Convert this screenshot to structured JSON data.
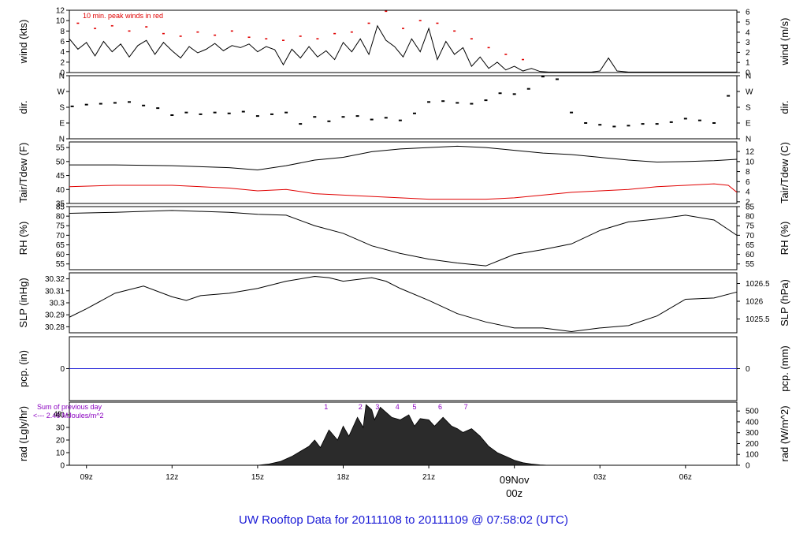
{
  "title": "UW Rooftop Data for 20111108  to  20111109 @ 07:58:02  (UTC)",
  "colors": {
    "primary": "#000000",
    "peak": "#e00000",
    "dew": "#e00000",
    "precip": "#1a1ad6",
    "rad_note": "#8a00c0",
    "title": "#1a1ad6",
    "date": "#e00000"
  },
  "x_axis": {
    "unit": "hour UTC (0 = 09Nov 00z)",
    "range": [
      -15.6,
      7.8
    ],
    "ticks": [
      {
        "h": -15,
        "label": "09z"
      },
      {
        "h": -12,
        "label": "12z"
      },
      {
        "h": -9,
        "label": "15z"
      },
      {
        "h": -6,
        "label": "18z"
      },
      {
        "h": -3,
        "label": "21z"
      },
      {
        "h": 3,
        "label": "03z"
      },
      {
        "h": 6,
        "label": "06z"
      }
    ],
    "date_label": "09Nov",
    "date_sub": "00z",
    "date_h": 0
  },
  "chart_data": [
    {
      "id": "wind",
      "type": "line",
      "ylabel": "wind (kts)",
      "ylabel_right": "wind (m/s)",
      "ylim": [
        0,
        12
      ],
      "yticks": [
        0,
        2,
        4,
        6,
        8,
        10,
        12
      ],
      "right_ticks": [
        {
          "v": 0,
          "label": "0"
        },
        {
          "v": 1.944,
          "label": "1"
        },
        {
          "v": 3.888,
          "label": "2"
        },
        {
          "v": 5.832,
          "label": "3"
        },
        {
          "v": 7.776,
          "label": "4"
        },
        {
          "v": 9.72,
          "label": "5"
        },
        {
          "v": 11.664,
          "label": "6"
        }
      ],
      "annotation": "10 min. peak winds in red",
      "series": [
        {
          "x": [
            -15.6,
            -15.3,
            -15.0,
            -14.7,
            -14.4,
            -14.1,
            -13.8,
            -13.5,
            -13.2,
            -12.9,
            -12.6,
            -12.3,
            -12.0,
            -11.7,
            -11.4,
            -11.1,
            -10.8,
            -10.5,
            -10.2,
            -9.9,
            -9.6,
            -9.3,
            -9.0,
            -8.7,
            -8.4,
            -8.1,
            -7.8,
            -7.5,
            -7.2,
            -6.9,
            -6.6,
            -6.3,
            -6.0,
            -5.7,
            -5.4,
            -5.1,
            -4.8,
            -4.5,
            -4.2,
            -3.9,
            -3.6,
            -3.3,
            -3.0,
            -2.7,
            -2.4,
            -2.1,
            -1.8,
            -1.5,
            -1.2,
            -0.9,
            -0.6,
            -0.3,
            0.0,
            0.3,
            0.6,
            0.9,
            1.2,
            1.5,
            1.8,
            2.1,
            2.4,
            2.7,
            3.0,
            3.3,
            3.6,
            4.0,
            5.0,
            6.0,
            7.0,
            7.8
          ],
          "y": [
            6.5,
            4.5,
            5.8,
            3.2,
            6.0,
            4.0,
            5.5,
            3.0,
            5.2,
            6.2,
            3.5,
            5.8,
            4.2,
            2.8,
            5.0,
            3.8,
            4.5,
            5.6,
            4.2,
            5.2,
            4.8,
            5.5,
            4.0,
            5.0,
            4.4,
            1.5,
            4.5,
            2.8,
            5.0,
            3.0,
            4.2,
            2.5,
            5.8,
            4.0,
            6.5,
            3.5,
            9.0,
            6.2,
            5.0,
            3.0,
            6.5,
            4.0,
            8.5,
            2.5,
            6.0,
            3.5,
            4.8,
            1.2,
            3.0,
            0.8,
            2.0,
            0.5,
            1.2,
            0.3,
            0.8,
            0.2,
            0.1,
            0.1,
            0.1,
            0.1,
            0.1,
            0.1,
            0.3,
            2.8,
            0.3,
            0.1,
            0.1,
            0.1,
            0.1,
            0.1
          ]
        },
        {
          "x": [
            -15.3,
            -14.7,
            -14.1,
            -13.5,
            -12.9,
            -12.3,
            -11.7,
            -11.1,
            -10.5,
            -9.9,
            -9.3,
            -8.7,
            -8.1,
            -7.5,
            -6.9,
            -6.3,
            -5.7,
            -5.1,
            -4.5,
            -3.9,
            -3.3,
            -2.7,
            -2.1,
            -1.5,
            -0.9,
            -0.3,
            0.3
          ],
          "y": [
            9.5,
            8.5,
            9.0,
            8.0,
            8.8,
            7.5,
            7.0,
            7.8,
            7.2,
            8.0,
            6.8,
            6.5,
            6.2,
            7.0,
            6.5,
            7.5,
            7.8,
            9.5,
            11.8,
            8.5,
            10.0,
            9.5,
            8.0,
            6.5,
            4.8,
            3.5,
            2.5
          ]
        }
      ]
    },
    {
      "id": "dir",
      "type": "scatter",
      "ylabel": "dir.",
      "ylabel_right": "dir.",
      "ylim": [
        0,
        360
      ],
      "yticks": [
        {
          "v": 0,
          "label": "N"
        },
        {
          "v": 90,
          "label": "E"
        },
        {
          "v": 180,
          "label": "S"
        },
        {
          "v": 270,
          "label": "W"
        },
        {
          "v": 360,
          "label": "N"
        }
      ],
      "series": [
        {
          "x": [
            -15.5,
            -15.0,
            -14.5,
            -14.0,
            -13.5,
            -13.0,
            -12.5,
            -12.0,
            -11.5,
            -11.0,
            -10.5,
            -10.0,
            -9.5,
            -9.0,
            -8.5,
            -8.0,
            -7.5,
            -7.0,
            -6.5,
            -6.0,
            -5.5,
            -5.0,
            -4.5,
            -4.0,
            -3.5,
            -3.0,
            -2.5,
            -2.0,
            -1.5,
            -1.0,
            -0.5,
            0.0,
            0.5,
            1.0,
            1.5,
            2.0,
            2.5,
            3.0,
            3.5,
            4.0,
            4.5,
            5.0,
            5.5,
            6.0,
            6.5,
            7.0,
            7.5
          ],
          "y": [
            185,
            195,
            200,
            205,
            210,
            190,
            175,
            135,
            150,
            140,
            150,
            145,
            155,
            130,
            140,
            150,
            85,
            125,
            100,
            125,
            130,
            110,
            120,
            105,
            145,
            210,
            215,
            205,
            200,
            220,
            260,
            255,
            285,
            355,
            340,
            150,
            90,
            80,
            70,
            75,
            85,
            85,
            95,
            115,
            105,
            90,
            245
          ]
        }
      ]
    },
    {
      "id": "temp",
      "type": "line",
      "ylabel": "Tair/Tdew (F)",
      "ylabel_right": "Tair/Tdew (C)",
      "ylim": [
        35,
        57
      ],
      "yticks": [
        35,
        40,
        45,
        50,
        55
      ],
      "right_ticks": [
        {
          "v": 35.6,
          "label": "2"
        },
        {
          "v": 39.2,
          "label": "4"
        },
        {
          "v": 42.8,
          "label": "6"
        },
        {
          "v": 46.4,
          "label": "8"
        },
        {
          "v": 50,
          "label": "10"
        },
        {
          "v": 53.6,
          "label": "12"
        }
      ],
      "series": [
        {
          "x": [
            -15.6,
            -14.0,
            -12.0,
            -10.0,
            -9.0,
            -8.0,
            -7.0,
            -6.0,
            -5.0,
            -4.0,
            -3.0,
            -2.0,
            -1.0,
            0.0,
            1.0,
            2.0,
            3.0,
            4.0,
            5.0,
            6.0,
            7.0,
            7.8
          ],
          "y": [
            48.8,
            48.8,
            48.5,
            47.8,
            47.0,
            48.5,
            50.5,
            51.5,
            53.5,
            54.5,
            55.0,
            55.5,
            55.0,
            54.0,
            53.0,
            52.5,
            51.5,
            50.5,
            49.8,
            50.0,
            50.3,
            50.8
          ]
        },
        {
          "x": [
            -15.6,
            -14.0,
            -12.0,
            -10.0,
            -9.0,
            -8.0,
            -7.0,
            -6.0,
            -5.0,
            -4.0,
            -3.0,
            -2.0,
            -1.0,
            0.0,
            1.0,
            2.0,
            3.0,
            4.0,
            5.0,
            6.0,
            7.0,
            7.5,
            7.8
          ],
          "y": [
            41.0,
            41.5,
            41.5,
            40.5,
            39.5,
            40.0,
            38.5,
            38.0,
            37.5,
            37.0,
            36.5,
            36.5,
            36.5,
            37.0,
            38.0,
            39.0,
            39.5,
            40.0,
            41.0,
            41.5,
            42.0,
            41.5,
            39.0
          ]
        }
      ]
    },
    {
      "id": "rh",
      "type": "line",
      "ylabel": "RH (%)",
      "ylabel_right": "RH (%)",
      "ylim": [
        52,
        85
      ],
      "yticks": [
        55,
        60,
        65,
        70,
        75,
        80,
        85
      ],
      "right_ticks": [
        {
          "v": 55,
          "label": "55"
        },
        {
          "v": 60,
          "label": "60"
        },
        {
          "v": 65,
          "label": "65"
        },
        {
          "v": 70,
          "label": "70"
        },
        {
          "v": 75,
          "label": "75"
        },
        {
          "v": 80,
          "label": "80"
        },
        {
          "v": 85,
          "label": "85"
        }
      ],
      "series": [
        {
          "x": [
            -15.6,
            -14.0,
            -12.0,
            -10.0,
            -9.0,
            -8.0,
            -7.0,
            -6.0,
            -5.0,
            -4.0,
            -3.0,
            -2.0,
            -1.0,
            0.0,
            1.0,
            2.0,
            3.0,
            4.0,
            5.0,
            6.0,
            7.0,
            7.8
          ],
          "y": [
            81.5,
            82.0,
            83.0,
            82.0,
            81.0,
            80.5,
            75.0,
            71.0,
            64.5,
            60.5,
            57.5,
            55.5,
            54.0,
            60.0,
            62.5,
            65.5,
            72.5,
            77.0,
            78.5,
            80.5,
            78.0,
            70.0
          ]
        }
      ]
    },
    {
      "id": "slp",
      "type": "line",
      "ylabel": "SLP (inHg)",
      "ylabel_right": "SLP (hPa)",
      "ylim": [
        30.275,
        30.325
      ],
      "yticks": [
        30.28,
        30.29,
        30.3,
        30.31,
        30.32
      ],
      "right_ticks": [
        {
          "v": 30.2865,
          "label": "1025.5"
        },
        {
          "v": 30.3013,
          "label": "1026"
        },
        {
          "v": 30.3161,
          "label": "1026.5"
        }
      ],
      "series": [
        {
          "x": [
            -15.6,
            -15.0,
            -14.0,
            -13.0,
            -12.0,
            -11.5,
            -11.0,
            -10.0,
            -9.0,
            -8.0,
            -7.0,
            -6.5,
            -6.0,
            -5.0,
            -4.5,
            -4.0,
            -3.0,
            -2.0,
            -1.0,
            0.0,
            1.0,
            2.0,
            3.0,
            4.0,
            5.0,
            6.0,
            7.0,
            7.8
          ],
          "y": [
            30.288,
            30.295,
            30.308,
            30.314,
            30.305,
            30.302,
            30.306,
            30.308,
            30.312,
            30.318,
            30.322,
            30.321,
            30.318,
            30.321,
            30.318,
            30.312,
            30.302,
            30.291,
            30.284,
            30.279,
            30.279,
            30.276,
            30.279,
            30.281,
            30.289,
            30.303,
            30.304,
            30.309
          ]
        }
      ]
    },
    {
      "id": "pcp",
      "type": "line",
      "ylabel": "pcp. (in)",
      "ylabel_right": "pcp. (mm)",
      "ylim": [
        -1,
        1
      ],
      "yticks": [
        0
      ],
      "right_ticks": [
        {
          "v": 0,
          "label": "0"
        }
      ],
      "series": [
        {
          "x": [
            -15.6,
            7.8
          ],
          "y": [
            0,
            0
          ]
        }
      ]
    },
    {
      "id": "rad",
      "type": "area",
      "ylabel": "rad (Lgly/hr)",
      "ylabel_right": "rad (W/m^2)",
      "ylim": [
        0,
        50
      ],
      "yticks": [
        0,
        10,
        20,
        30,
        40
      ],
      "right_ticks": [
        {
          "v": 0,
          "label": "0"
        },
        {
          "v": 8.6,
          "label": "100"
        },
        {
          "v": 17.2,
          "label": "200"
        },
        {
          "v": 25.8,
          "label": "300"
        },
        {
          "v": 34.4,
          "label": "400"
        },
        {
          "v": 43.0,
          "label": "500"
        }
      ],
      "annotation_lines": [
        "Sum of previous day",
        "<--- 2.46 MJoules/m^2"
      ],
      "top_number": "49",
      "hour_marks": [
        {
          "h": -6.6,
          "label": "1"
        },
        {
          "h": -5.4,
          "label": "2"
        },
        {
          "h": -4.8,
          "label": "3"
        },
        {
          "h": -4.1,
          "label": "4"
        },
        {
          "h": -3.5,
          "label": "5"
        },
        {
          "h": -2.6,
          "label": "6"
        },
        {
          "h": -1.7,
          "label": "7"
        }
      ],
      "series": [
        {
          "x": [
            -9.0,
            -8.6,
            -8.2,
            -7.8,
            -7.5,
            -7.2,
            -7.0,
            -6.8,
            -6.5,
            -6.2,
            -6.0,
            -5.8,
            -5.5,
            -5.3,
            -5.2,
            -5.0,
            -4.9,
            -4.7,
            -4.5,
            -4.3,
            -4.0,
            -3.7,
            -3.5,
            -3.3,
            -3.0,
            -2.8,
            -2.5,
            -2.2,
            -2.0,
            -1.8,
            -1.5,
            -1.2,
            -0.9,
            -0.6,
            -0.3,
            0.0,
            0.3,
            0.6,
            0.9,
            1.2
          ],
          "y": [
            0,
            1,
            3,
            7,
            11,
            15,
            20,
            14,
            28,
            20,
            31,
            23,
            38,
            30,
            48,
            44,
            36,
            46,
            42,
            38,
            36,
            40,
            31,
            37,
            36,
            31,
            38,
            31,
            29,
            26,
            29,
            23,
            15,
            10,
            7,
            4,
            2,
            1,
            0.3,
            0
          ]
        }
      ]
    }
  ]
}
